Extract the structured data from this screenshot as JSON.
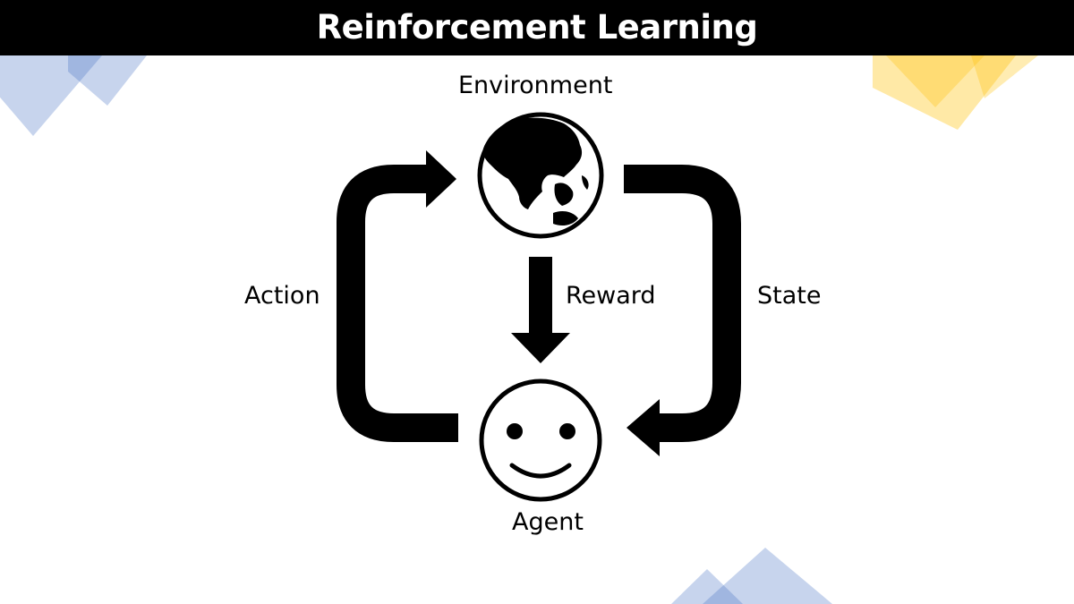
{
  "title": "Reinforcement Learning",
  "nodes": {
    "environment": {
      "label": "Environment",
      "icon": "globe-icon"
    },
    "agent": {
      "label": "Agent",
      "icon": "smiley-face-icon"
    }
  },
  "edges": {
    "action": {
      "label": "Action",
      "from": "Agent",
      "to": "Environment"
    },
    "reward": {
      "label": "Reward",
      "from": "Environment",
      "to": "Agent"
    },
    "state": {
      "label": "State",
      "from": "Environment",
      "to": "Agent"
    }
  },
  "colors": {
    "title_bar": "#000000",
    "title_text": "#ffffff",
    "arrows": "#000000",
    "deco_blue": "#4472c4",
    "deco_yellow": "#ffc000"
  }
}
